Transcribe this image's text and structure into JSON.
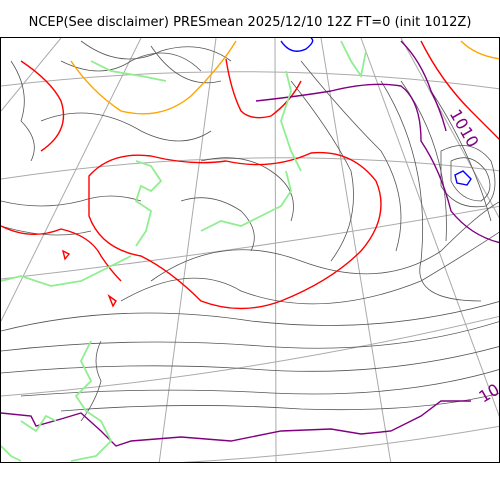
{
  "title": "NCEP(See disclaimer) PRESmean 2025/12/10 12Z FT=0 (init 1012Z)",
  "isobar_labels": {
    "high_label": "1010",
    "corner_label": "10"
  },
  "colors": {
    "graticule": "#aaaaaa",
    "coastline": "#90ee90",
    "isobar_thin": "#555555",
    "isobar_red": "#ff0000",
    "isobar_purple": "#800080",
    "isobar_orange": "#ffa500",
    "isobar_blue": "#0000ff"
  }
}
